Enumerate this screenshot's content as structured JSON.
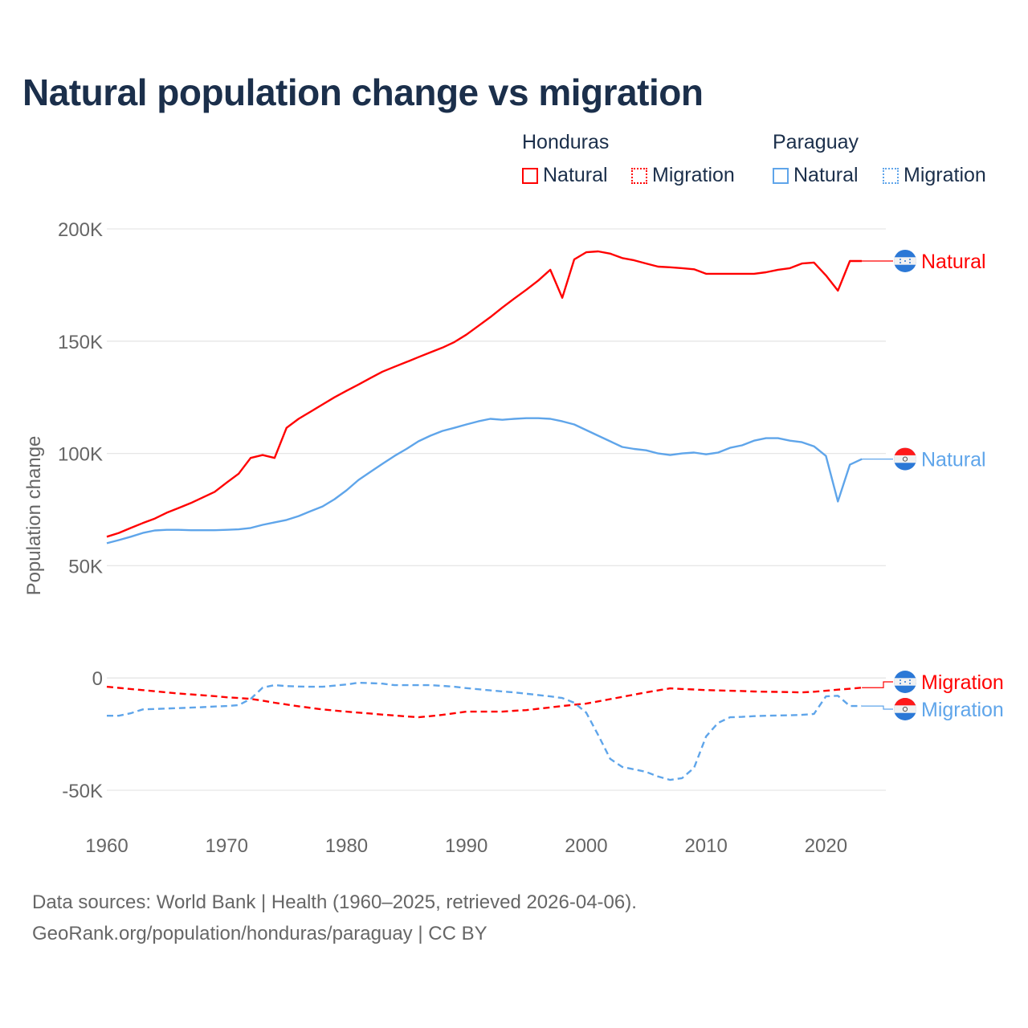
{
  "title": "Natural population change vs migration",
  "legend": {
    "groups": [
      {
        "name": "Honduras",
        "items": [
          "Natural",
          "Migration"
        ]
      },
      {
        "name": "Paraguay",
        "items": [
          "Natural",
          "Migration"
        ]
      }
    ]
  },
  "footer": {
    "line1": "Data sources: World Bank | Health (1960–2025, retrieved 2026-04-06).",
    "line2": "GeoRank.org/population/honduras/paraguay | CC BY"
  },
  "colors": {
    "honduras": "#ff0000",
    "paraguay": "#5fa5ea",
    "title": "#1b2f4b",
    "grid": "#e6e6e6"
  },
  "chart_data": {
    "type": "line",
    "title": "Natural population change vs migration",
    "xlabel": "",
    "ylabel": "Population change",
    "xlim": [
      1960,
      2025
    ],
    "ylim": [
      -50,
      200
    ],
    "y_unit": "thousands",
    "x_ticks": [
      "1960",
      "1970",
      "1980",
      "1990",
      "2000",
      "2010",
      "2020"
    ],
    "y_ticks": [
      {
        "value": -50,
        "label": "-50K"
      },
      {
        "value": 0,
        "label": "0"
      },
      {
        "value": 50,
        "label": "50K"
      },
      {
        "value": 100,
        "label": "100K"
      },
      {
        "value": 150,
        "label": "150K"
      },
      {
        "value": 200,
        "label": "200K"
      }
    ],
    "grid": true,
    "legend_position": "top-right",
    "x_start": 1960,
    "series": [
      {
        "name": "Honduras Natural",
        "end_label": "Natural",
        "country": "honduras",
        "style": "solid",
        "values": [
          62.9,
          64.6,
          66.8,
          69,
          71,
          73.6,
          75.7,
          77.9,
          80.4,
          82.9,
          87,
          91,
          98,
          99.3,
          98,
          111.4,
          115.4,
          118.6,
          121.8,
          125,
          127.9,
          130.7,
          133.6,
          136.4,
          138.6,
          140.7,
          142.9,
          145,
          147.1,
          149.6,
          152.9,
          156.8,
          160.7,
          165,
          169,
          172.9,
          177,
          181.8,
          169.3,
          186.4,
          189.6,
          190,
          189,
          187,
          186,
          184.6,
          183.2,
          182.9,
          182.5,
          182,
          180,
          180,
          180,
          180,
          180,
          180.7,
          181.8,
          182.5,
          184.6,
          185,
          179.3,
          172.5,
          185.7,
          185.7
        ]
      },
      {
        "name": "Honduras Migration",
        "end_label": "Migration",
        "country": "honduras",
        "style": "dashed",
        "values": [
          -3.9,
          -4.4,
          -4.9,
          -5.4,
          -5.9,
          -6.4,
          -6.9,
          -7.3,
          -7.7,
          -8.1,
          -8.6,
          -8.9,
          -9.3,
          -10.1,
          -11,
          -11.8,
          -12.6,
          -13.3,
          -14,
          -14.5,
          -15,
          -15.4,
          -15.8,
          -16.3,
          -16.7,
          -17.1,
          -17.5,
          -17,
          -16.4,
          -15.7,
          -15,
          -15,
          -15,
          -15,
          -14.6,
          -14.3,
          -13.7,
          -13.1,
          -12.5,
          -11.9,
          -11.4,
          -10.4,
          -9.4,
          -8.4,
          -7.4,
          -6.4,
          -5.5,
          -4.6,
          -4.9,
          -5.1,
          -5.4,
          -5.5,
          -5.7,
          -5.8,
          -6,
          -6.1,
          -6.2,
          -6.3,
          -6.4,
          -6.1,
          -5.7,
          -5.2,
          -4.8,
          -4.3
        ]
      },
      {
        "name": "Paraguay Natural",
        "end_label": "Natural",
        "country": "paraguay",
        "style": "solid",
        "values": [
          60,
          61.4,
          62.9,
          64.6,
          65.7,
          66,
          66,
          65.8,
          65.8,
          65.8,
          66,
          66.2,
          66.8,
          68.2,
          69.3,
          70.4,
          72.1,
          74.3,
          76.4,
          79.6,
          83.6,
          88.2,
          91.8,
          95.4,
          98.9,
          102,
          105.4,
          107.9,
          110,
          111.4,
          112.9,
          114.3,
          115.4,
          115,
          115.4,
          115.7,
          115.7,
          115.4,
          114.3,
          112.9,
          110.4,
          107.9,
          105.4,
          102.9,
          102,
          101.4,
          100,
          99.3,
          100,
          100.4,
          99.6,
          100.4,
          102.5,
          103.6,
          105.7,
          106.8,
          106.8,
          105.7,
          105,
          103.2,
          98.9,
          78.6,
          95,
          97.5
        ]
      },
      {
        "name": "Paraguay Migration",
        "end_label": "Migration",
        "country": "paraguay",
        "style": "dashed",
        "values": [
          -16.8,
          -16.8,
          -15.7,
          -14,
          -13.8,
          -13.6,
          -13.4,
          -13.2,
          -13,
          -12.7,
          -12.5,
          -12.1,
          -9.3,
          -4.3,
          -3.2,
          -3.6,
          -3.8,
          -3.9,
          -3.9,
          -3.4,
          -2.9,
          -2.1,
          -2.3,
          -2.5,
          -3.2,
          -3.2,
          -3.2,
          -3.2,
          -3.5,
          -3.9,
          -4.5,
          -5,
          -5.5,
          -6,
          -6.4,
          -7,
          -7.6,
          -8.2,
          -8.9,
          -11,
          -15.4,
          -25.4,
          -36,
          -39.6,
          -40.7,
          -41.8,
          -43.9,
          -45.4,
          -44.6,
          -40,
          -26,
          -20,
          -17.5,
          -17.3,
          -17,
          -16.8,
          -16.7,
          -16.6,
          -16.4,
          -16,
          -8.2,
          -7.9,
          -12.5,
          -12.5
        ]
      }
    ]
  }
}
